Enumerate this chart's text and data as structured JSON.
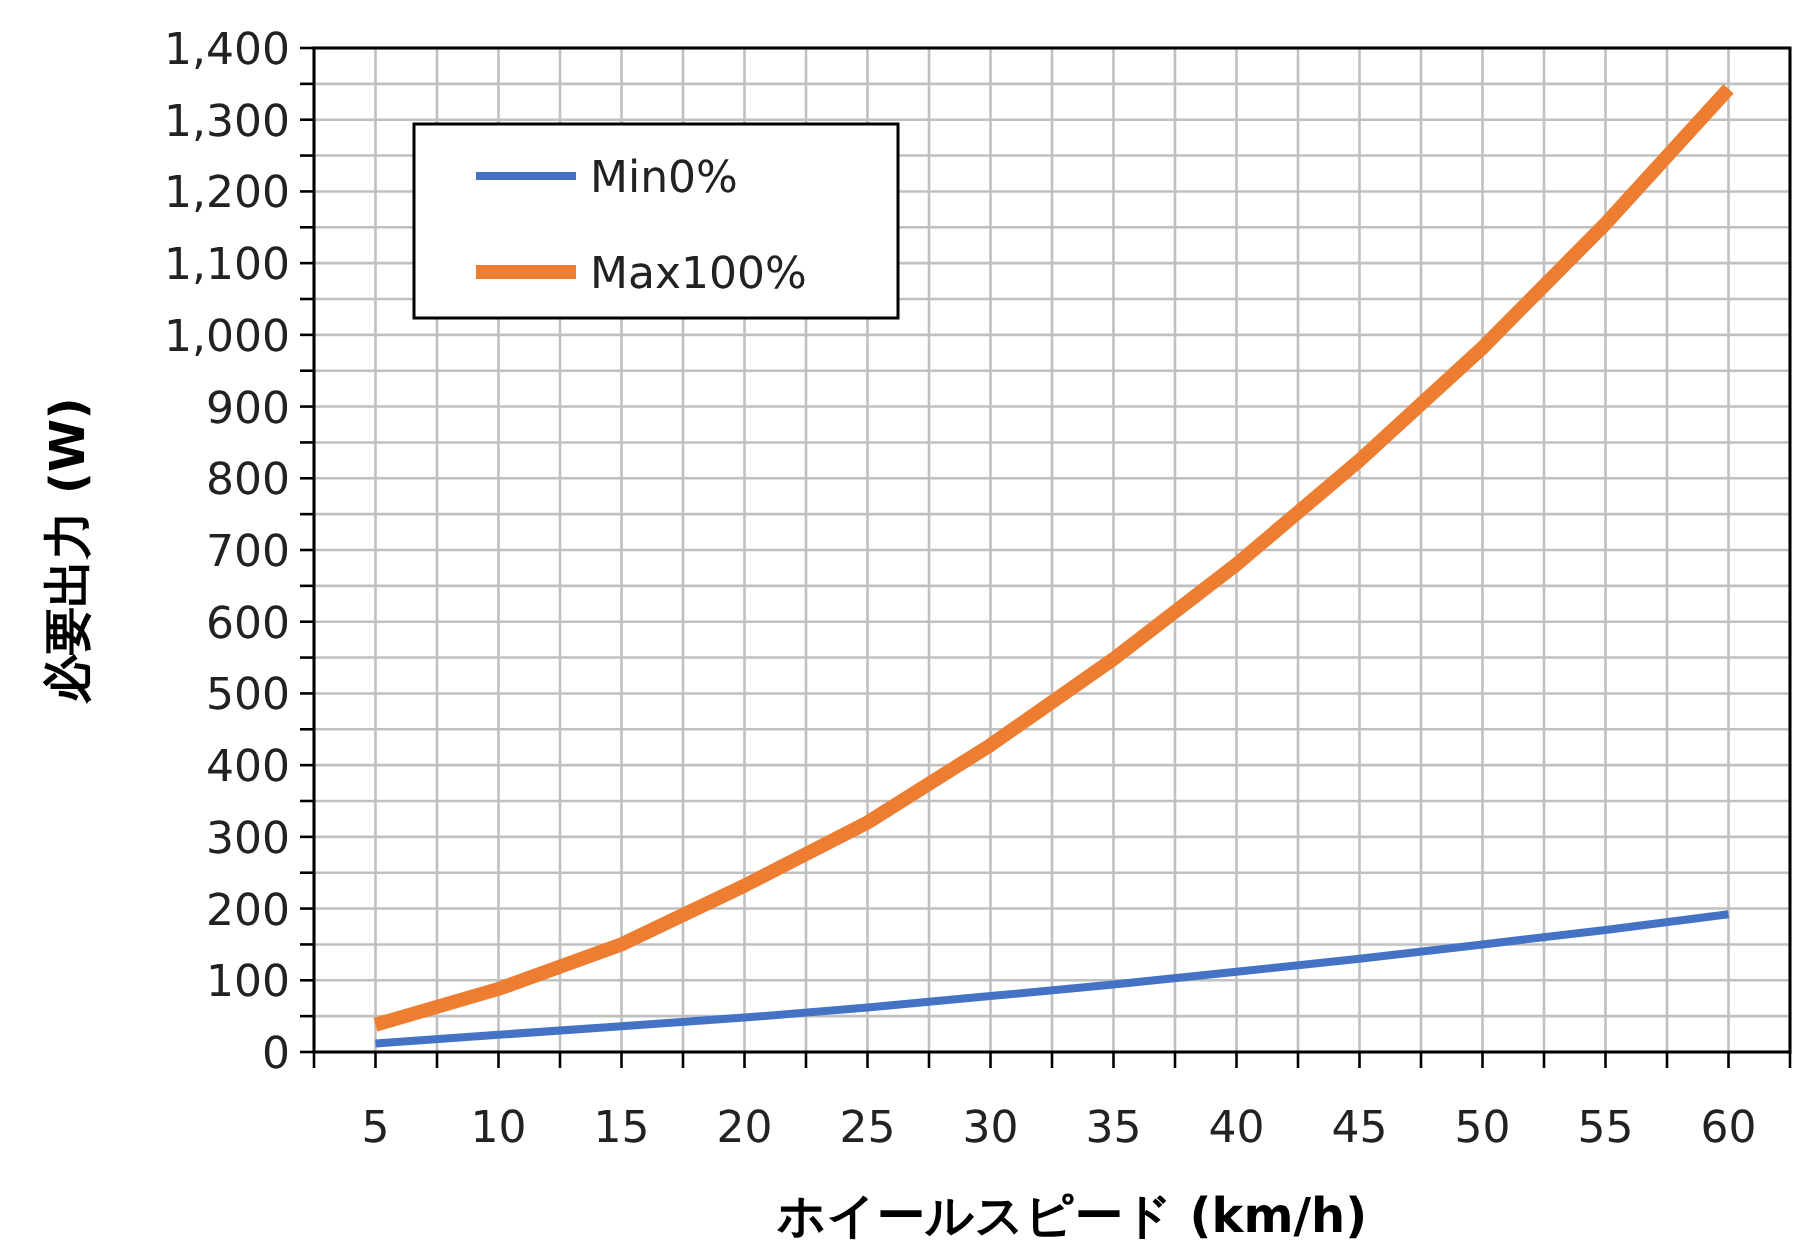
{
  "chart_data": {
    "type": "line",
    "xlabel": "ホイールスピード (km/h)",
    "ylabel": "必要出力 (W)",
    "x": [
      5,
      10,
      15,
      20,
      25,
      30,
      35,
      40,
      45,
      50,
      55,
      60
    ],
    "series": [
      {
        "name": "Min0%",
        "color": "#4472c4",
        "values": [
          12,
          24,
          36,
          48,
          62,
          78,
          94,
          112,
          130,
          150,
          170,
          192
        ]
      },
      {
        "name": "Max100%",
        "color": "#ed7d31",
        "values": [
          38,
          88,
          150,
          232,
          320,
          428,
          548,
          680,
          825,
          982,
          1155,
          1343
        ]
      }
    ],
    "xlim": [
      2.5,
      62.5
    ],
    "xticks": [
      {
        "value": 2.5,
        "label": null
      },
      5,
      {
        "value": 7.5,
        "label": null
      },
      10,
      {
        "value": 12.5,
        "label": null
      },
      15,
      {
        "value": 17.5,
        "label": null
      },
      20,
      {
        "value": 22.5,
        "label": null
      },
      25,
      {
        "value": 27.5,
        "label": null
      },
      30,
      {
        "value": 32.5,
        "label": null
      },
      35,
      {
        "value": 37.5,
        "label": null
      },
      40,
      {
        "value": 42.5,
        "label": null
      },
      45,
      {
        "value": 47.5,
        "label": null
      },
      50,
      {
        "value": 52.5,
        "label": null
      },
      55,
      {
        "value": 57.5,
        "label": null
      },
      60,
      {
        "value": 62.5,
        "label": null
      }
    ],
    "ylim": [
      0,
      1400
    ],
    "yticks": [
      0,
      {
        "value": 50,
        "label": null
      },
      100,
      {
        "value": 150,
        "label": null
      },
      200,
      {
        "value": 250,
        "label": null
      },
      300,
      {
        "value": 350,
        "label": null
      },
      400,
      {
        "value": 450,
        "label": null
      },
      500,
      {
        "value": 550,
        "label": null
      },
      600,
      {
        "value": 650,
        "label": null
      },
      700,
      {
        "value": 750,
        "label": null
      },
      800,
      {
        "value": 850,
        "label": null
      },
      900,
      {
        "value": 950,
        "label": null
      },
      {
        "value": 1000,
        "label": "1,000"
      },
      {
        "value": 1050,
        "label": null
      },
      {
        "value": 1100,
        "label": "1,100"
      },
      {
        "value": 1150,
        "label": null
      },
      {
        "value": 1200,
        "label": "1,200"
      },
      {
        "value": 1250,
        "label": null
      },
      {
        "value": 1300,
        "label": "1,300"
      },
      {
        "value": 1350,
        "label": null
      },
      {
        "value": 1400,
        "label": "1,400"
      }
    ],
    "grid": true,
    "legend": "top left",
    "line_style": "solid",
    "marker": "none"
  }
}
